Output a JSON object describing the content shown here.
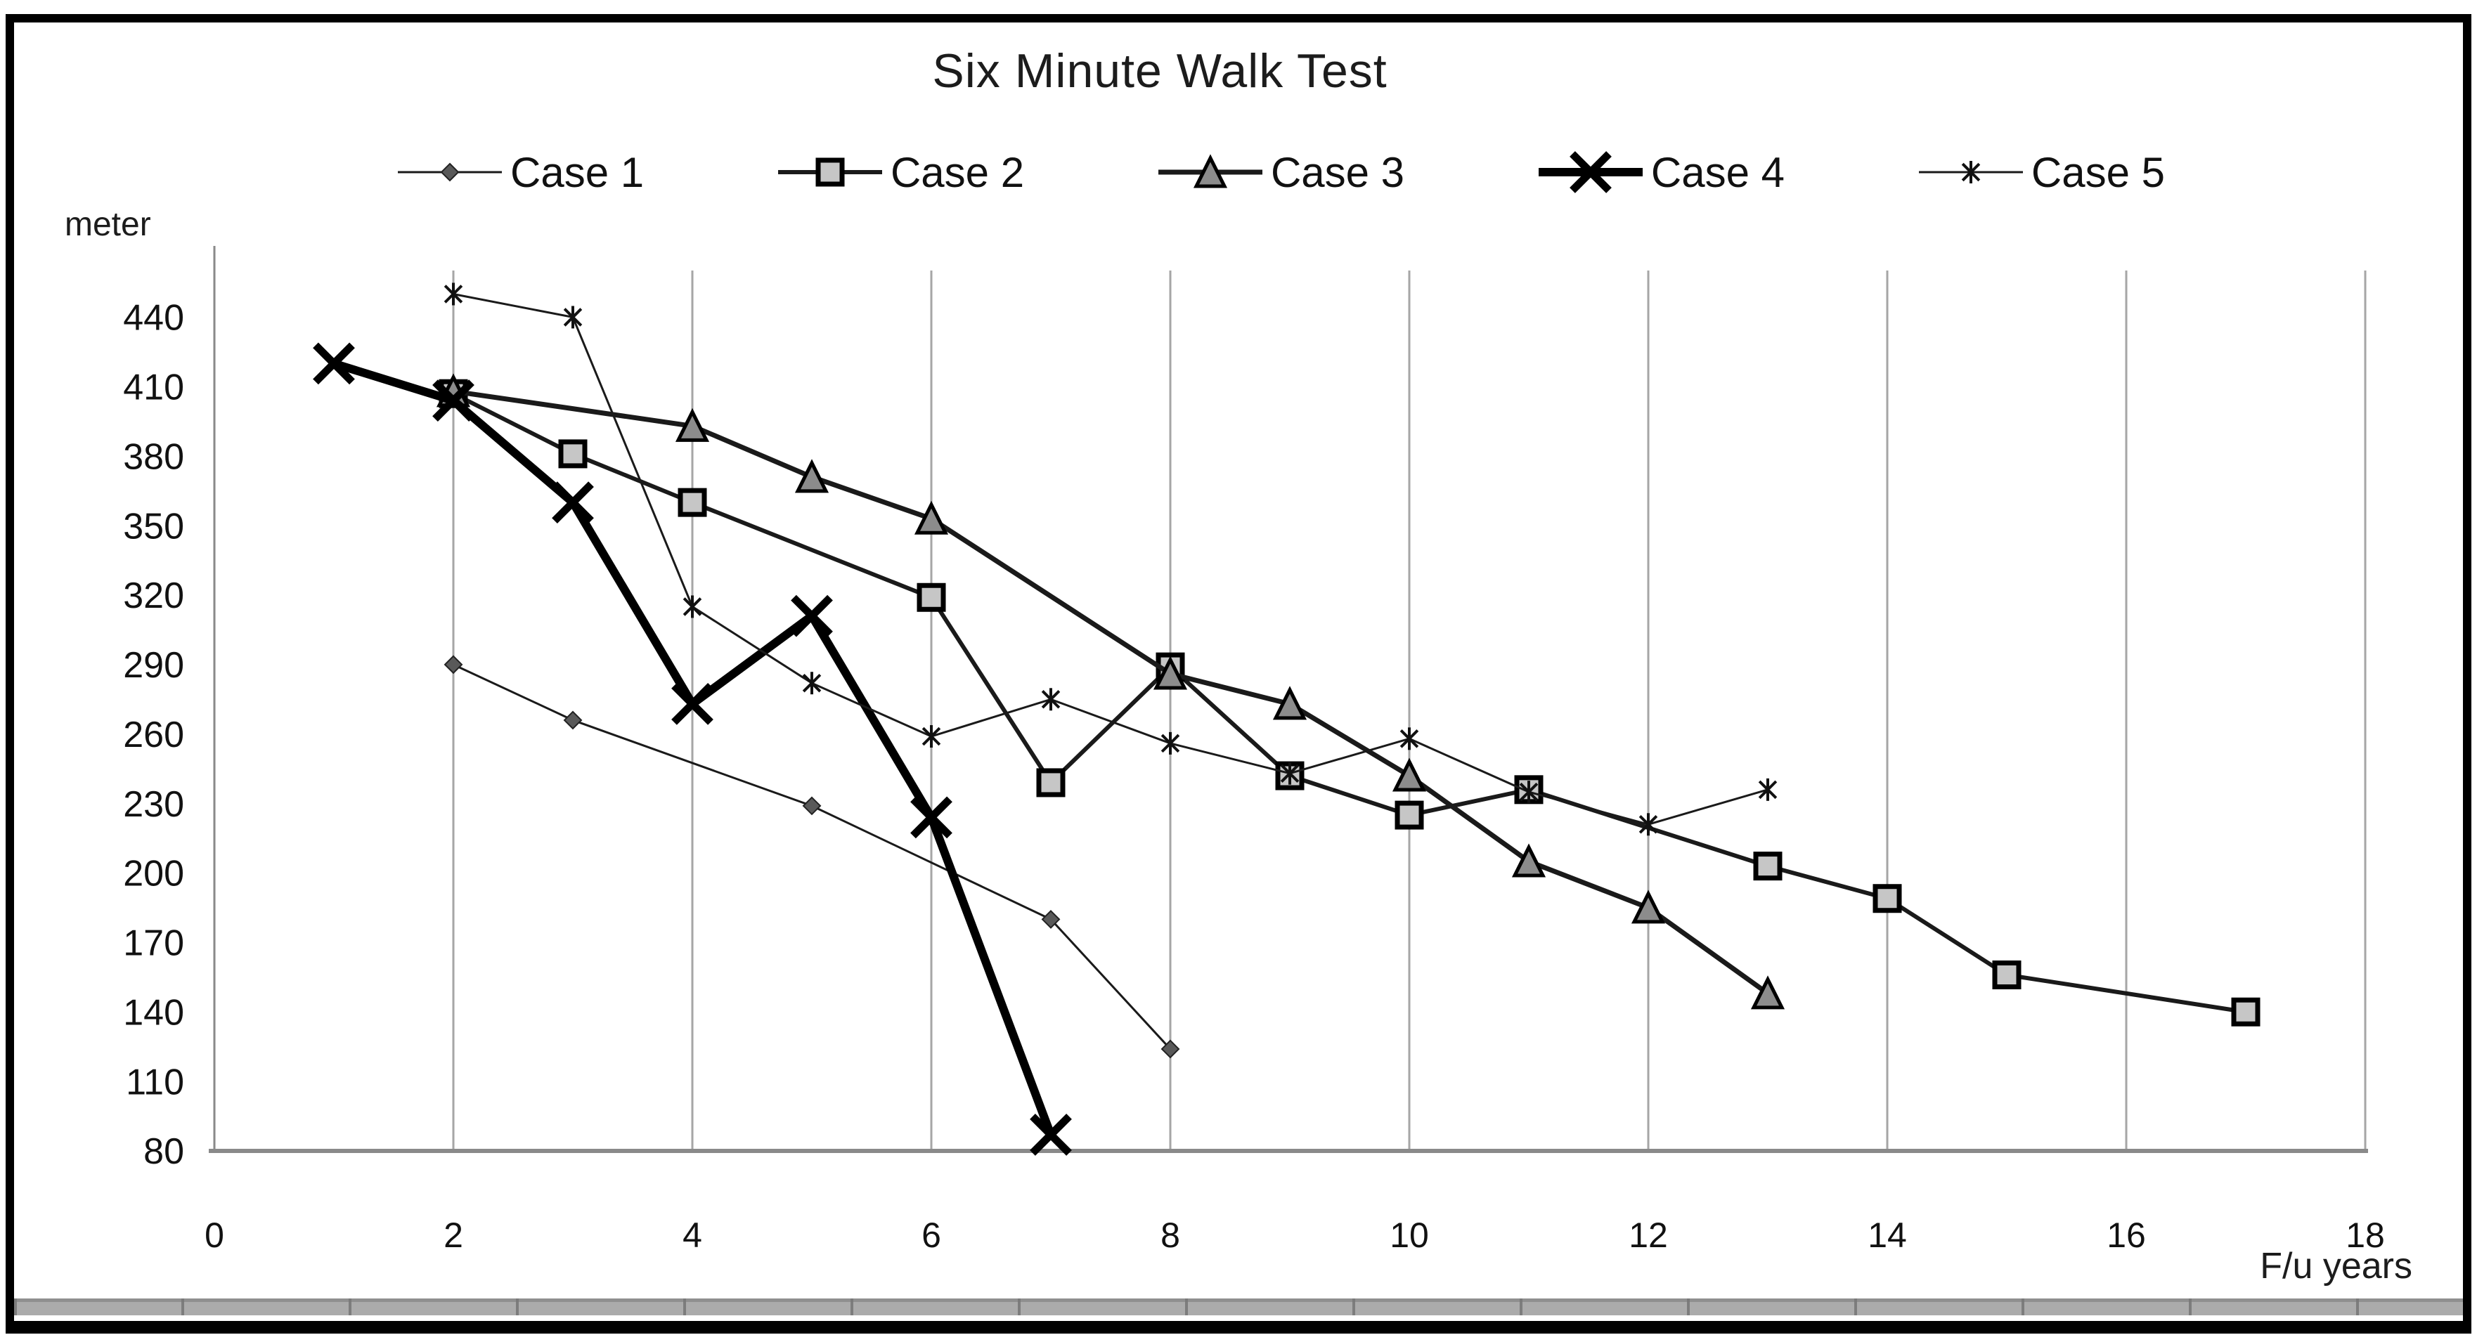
{
  "figure": {
    "window_note": "static chart image"
  },
  "colors": {
    "line": "#1a1a1a",
    "thick_line": "#000000",
    "gridline": "#a6a6a6",
    "axis": "#8a8a8a",
    "square_fill": "#c6c6c6",
    "triangle_fill": "#8c8c8c",
    "diamond_fill": "#595959",
    "text": "#111111"
  },
  "chart_data": {
    "type": "line",
    "title": "Six Minute Walk Test",
    "ylabel": "meter",
    "xlabel": "F/u years",
    "xlim": [
      0,
      18
    ],
    "ylim": [
      80,
      460
    ],
    "x_ticks": [
      0,
      2,
      4,
      6,
      8,
      10,
      12,
      14,
      16,
      18
    ],
    "y_ticks": [
      440,
      410,
      380,
      350,
      320,
      290,
      260,
      230,
      200,
      170,
      140,
      110,
      80
    ],
    "gridlines_x": [
      2,
      4,
      6,
      8,
      10,
      12,
      14,
      16
    ],
    "grid": "vertical-only",
    "legend_position": "top",
    "series": [
      {
        "name": "Case 1",
        "marker": "diamond",
        "line_width": 3,
        "marker_size": 24,
        "points": [
          [
            2,
            290
          ],
          [
            3,
            266
          ],
          [
            5,
            229
          ],
          [
            7,
            180
          ],
          [
            8,
            124
          ]
        ]
      },
      {
        "name": "Case 2",
        "marker": "square",
        "line_width": 6,
        "marker_size": 34,
        "points": [
          [
            2,
            407
          ],
          [
            3,
            381
          ],
          [
            4,
            360
          ],
          [
            6,
            319
          ],
          [
            7,
            239
          ],
          [
            8,
            289
          ],
          [
            9,
            242
          ],
          [
            10,
            225
          ],
          [
            11,
            236
          ],
          [
            13,
            203
          ],
          [
            14,
            189
          ],
          [
            15,
            156
          ],
          [
            17,
            140
          ]
        ]
      },
      {
        "name": "Case 3",
        "marker": "triangle",
        "line_width": 7,
        "marker_size": 40,
        "points": [
          [
            2,
            408
          ],
          [
            4,
            393
          ],
          [
            5,
            371
          ],
          [
            6,
            353
          ],
          [
            8,
            286
          ],
          [
            9,
            273
          ],
          [
            10,
            242
          ],
          [
            11,
            205
          ],
          [
            12,
            185
          ],
          [
            13,
            148
          ]
        ]
      },
      {
        "name": "Case 4",
        "marker": "x",
        "line_width": 12,
        "marker_size": 52,
        "points": [
          [
            1,
            420
          ],
          [
            2,
            404
          ],
          [
            3,
            360
          ],
          [
            4,
            273
          ],
          [
            5,
            311
          ],
          [
            6,
            224
          ],
          [
            7,
            87
          ]
        ]
      },
      {
        "name": "Case 5",
        "marker": "asterisk",
        "line_width": 3,
        "marker_size": 32,
        "points": [
          [
            2,
            450
          ],
          [
            3,
            440
          ],
          [
            4,
            315
          ],
          [
            5,
            282
          ],
          [
            6,
            259
          ],
          [
            7,
            275
          ],
          [
            8,
            256
          ],
          [
            9,
            243
          ],
          [
            10,
            258
          ],
          [
            11,
            235
          ],
          [
            12,
            221
          ],
          [
            13,
            236
          ]
        ]
      }
    ]
  }
}
